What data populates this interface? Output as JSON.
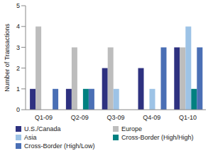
{
  "chart_data": {
    "type": "bar",
    "categories": [
      "Q1-09",
      "Q2-09",
      "Q3-09",
      "Q4-09",
      "Q1-10"
    ],
    "y_label": "Number of Transactions",
    "ylim": [
      0,
      5
    ],
    "yticks": [
      0,
      1,
      2,
      3,
      4,
      5
    ],
    "grid": false,
    "legend": "bottom",
    "series": [
      {
        "name": "U.S./Canada",
        "color": "#2E3180",
        "values": [
          1,
          1,
          2,
          2,
          3
        ]
      },
      {
        "name": "Europe",
        "color": "#BDBDBD",
        "values": [
          4,
          3,
          3,
          0,
          3
        ]
      },
      {
        "name": "Asia",
        "color": "#9DC3E6",
        "values": [
          0,
          0,
          1,
          1,
          4
        ]
      },
      {
        "name": "Cross-Border (High/High)",
        "color": "#008080",
        "values": [
          0,
          1,
          0,
          0,
          1
        ]
      },
      {
        "name": "Cross-Border (High/Low)",
        "color": "#4A6FB5",
        "values": [
          1,
          1,
          0,
          3,
          3
        ]
      }
    ]
  }
}
